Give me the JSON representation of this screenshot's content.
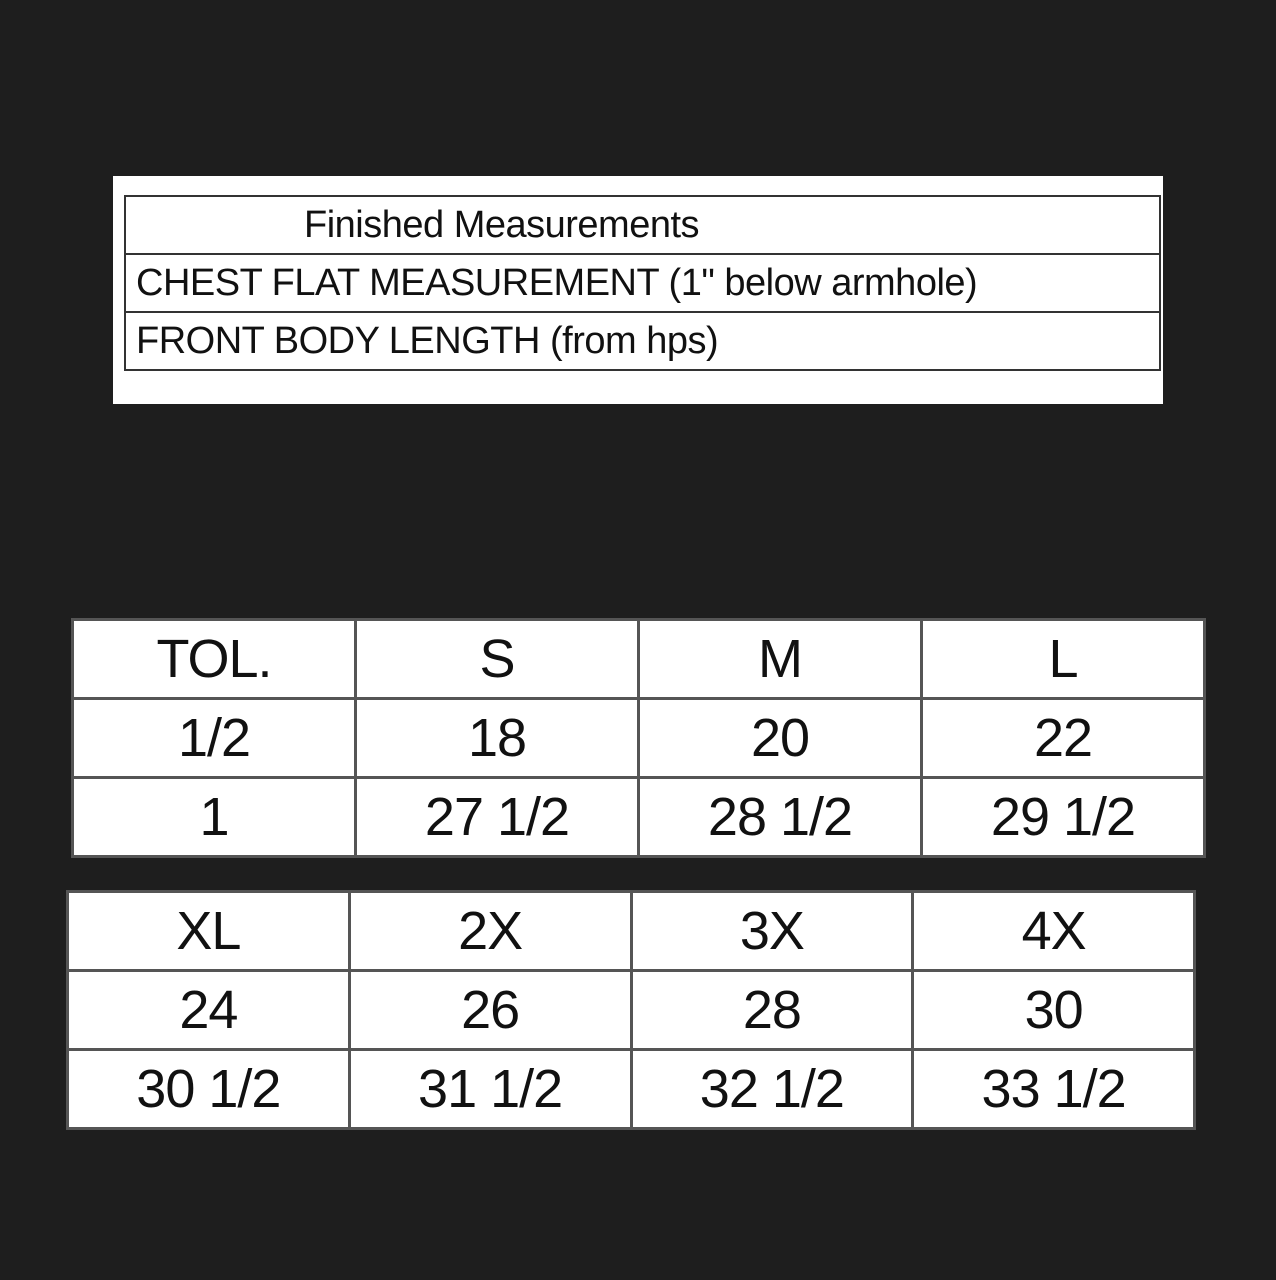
{
  "measurements_header": {
    "title": "Finished Measurements",
    "rows": [
      "CHEST FLAT MEASUREMENT (1\" below armhole)",
      "FRONT BODY LENGTH (from hps)"
    ]
  },
  "size_table_1": {
    "header": [
      "TOL.",
      "S",
      "M",
      "L"
    ],
    "rows": [
      [
        "1/2",
        "18",
        "20",
        "22"
      ],
      [
        "1",
        "27 1/2",
        "28 1/2",
        "29 1/2"
      ]
    ]
  },
  "size_table_2": {
    "header": [
      "XL",
      "2X",
      "3X",
      "4X"
    ],
    "rows": [
      [
        "24",
        "26",
        "28",
        "30"
      ],
      [
        "30 1/2",
        "31 1/2",
        "32 1/2",
        "33 1/2"
      ]
    ]
  }
}
